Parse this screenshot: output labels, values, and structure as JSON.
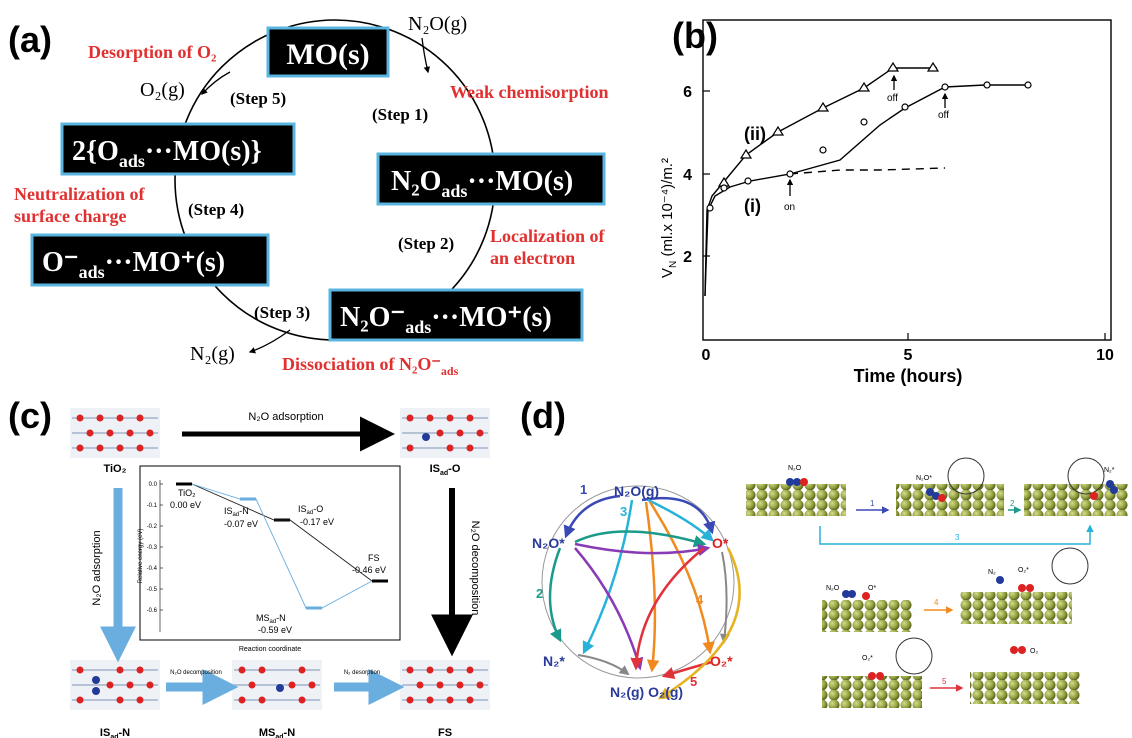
{
  "panels": {
    "a": {
      "label": "(a)",
      "species": {
        "mo": "MO(s)",
        "n2o_ads": "N₂O",
        "n2o_ads_sub": "ads",
        "n2o_ads_rest": "···MO(s)",
        "n2o_minus": "N₂O⁻",
        "n2o_minus_sub": "ads",
        "n2o_minus_rest": "···MO⁺(s)",
        "o_minus": "O⁻",
        "o_minus_sub": "ads",
        "o_minus_rest": "···MO⁺(s)",
        "two_o": "2{O",
        "two_o_sub": "ads",
        "two_o_rest": "···MO(s)}"
      },
      "gases": {
        "n2o_g": "N₂O(g)",
        "o2_g": "O₂(g)",
        "n2_g": "N₂(g)"
      },
      "steps": [
        "(Step 1)",
        "(Step 2)",
        "(Step 3)",
        "(Step 4)",
        "(Step 5)"
      ],
      "processes": {
        "weak": "Weak chemisorption",
        "localization": [
          "Localization of",
          "an electron"
        ],
        "dissociation": "Dissociation of N₂O⁻",
        "dissociation_sub": "ads",
        "neutralization": [
          "Neutralization of",
          "surface charge"
        ],
        "desorption": "Desorption of O₂"
      },
      "colors": {
        "box": "#000000",
        "box_border": "#5ab4e0",
        "red": "#e03030"
      }
    },
    "b": {
      "label": "(b)",
      "ylabel": "V",
      "ylabel_sub": "N",
      "ylabel_rest": " (ml.x 10⁻⁴)/m.²",
      "xlabel": "Time (hours)",
      "xticks": [
        "0",
        "5",
        "10"
      ],
      "yticks": [
        "2",
        "4",
        "6"
      ],
      "curve_labels": {
        "ii": "(ii)",
        "i": "(i)"
      },
      "annotations": {
        "on": "on",
        "off1": "off",
        "off2": "off"
      }
    },
    "c": {
      "label": "(c)",
      "states": {
        "tio2": "TiO₂",
        "is_o": "IS",
        "is_o_sub": "ad",
        "is_o_rest": "-O",
        "is_n": "IS",
        "is_n_sub": "ad",
        "is_n_rest": "-N",
        "ms_n": "MS",
        "ms_n_sub": "ad",
        "ms_n_rest": "-N",
        "fs": "FS"
      },
      "arrows": {
        "top": "N₂O adsorption",
        "left": "N₂O adsorption",
        "right": "N₂O decomposition",
        "bottom1": "N₂O decomposition",
        "bottom2": "N₂ desorption"
      },
      "energy": {
        "ylabel": "Relative energy (eV)",
        "xlabel": "Reaction coordinate",
        "yticks": [
          "0.0",
          "-0.1",
          "-0.2",
          "-0.3",
          "-0.4",
          "-0.5",
          "-0.6"
        ],
        "levels": [
          {
            "name": "TiO₂",
            "value": "0.00 eV"
          },
          {
            "name": "IS",
            "sub": "ad",
            "rest": "-N",
            "value": "-0.07 eV"
          },
          {
            "name": "IS",
            "sub": "ad",
            "rest": "-O",
            "value": "-0.17 eV"
          },
          {
            "name": "MS",
            "sub": "ad",
            "rest": "-N",
            "value": "-0.59 eV"
          },
          {
            "name": "FS",
            "value": "-0.46 eV"
          }
        ]
      }
    },
    "d": {
      "label": "(d)",
      "nodes": {
        "n2o_g": "N₂O(g)",
        "n2o_star": "N₂O*",
        "o_star": "O*",
        "n2_star": "N₂*",
        "o2_star": "O₂*",
        "products": "N₂(g) O₂(g)"
      },
      "edge_numbers": [
        "1",
        "2",
        "3",
        "4",
        "5"
      ],
      "slab_labels": {
        "n2o": "N₂O",
        "n2o_star": "N₂O*",
        "o_star": "O*",
        "n2_star": "N₂*",
        "n2o2": "N₂O",
        "o_star2": "O*",
        "n2": "N₂",
        "o2_star": "O₂*",
        "o2_star2": "O₂*",
        "o2": "O₂"
      },
      "colors": {
        "blue": "#3a49b5",
        "teal": "#1a9a8a",
        "cyan": "#27b3d9",
        "orange": "#f08a1e",
        "red": "#e0323a",
        "purple": "#8a3ab5",
        "gray": "#888888",
        "gold": "#e6b320"
      }
    }
  }
}
